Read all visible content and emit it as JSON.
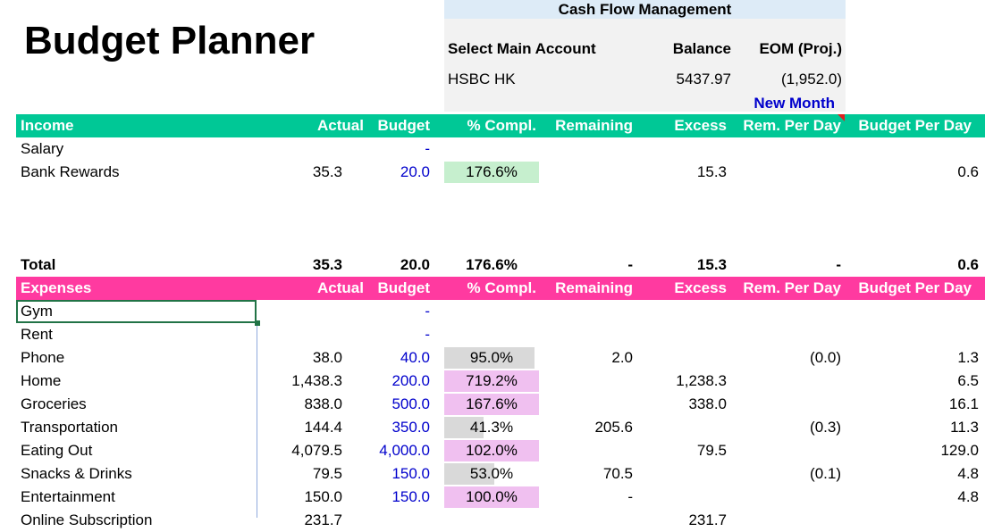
{
  "title": "Budget Planner",
  "cashflow": {
    "header": "Cash Flow Management",
    "select_label": "Select Main Account",
    "balance_label": "Balance",
    "eom_label": "EOM (Proj.)",
    "account": "HSBC HK",
    "balance": "5437.97",
    "eom": "(1,952.0)",
    "new_month": "New Month"
  },
  "columns": [
    "Actual",
    "Budget",
    "% Compl.",
    "Remaining",
    "Excess",
    "Rem. Per Day",
    "Budget Per Day"
  ],
  "income": {
    "label": "Income",
    "rows": [
      {
        "name": "Salary",
        "actual": "",
        "budget": "-",
        "pct": "",
        "remaining": "",
        "excess": "",
        "rem_day": "",
        "budget_day": ""
      },
      {
        "name": "Bank Rewards",
        "actual": "35.3",
        "budget": "20.0",
        "pct": "176.6%",
        "remaining": "",
        "excess": "15.3",
        "rem_day": "",
        "budget_day": "0.6"
      }
    ],
    "total": {
      "name": "Total",
      "actual": "35.3",
      "budget": "20.0",
      "pct": "176.6%",
      "remaining": "-",
      "excess": "15.3",
      "rem_day": "-",
      "budget_day": "0.6"
    }
  },
  "expenses": {
    "label": "Expenses",
    "rows": [
      {
        "name": "Gym",
        "actual": "",
        "budget": "-",
        "pct": "",
        "remaining": "",
        "excess": "",
        "rem_day": "",
        "budget_day": ""
      },
      {
        "name": "Rent",
        "actual": "",
        "budget": "-",
        "pct": "",
        "remaining": "",
        "excess": "",
        "rem_day": "",
        "budget_day": ""
      },
      {
        "name": "Phone",
        "actual": "38.0",
        "budget": "40.0",
        "pct": "95.0%",
        "remaining": "2.0",
        "excess": "",
        "rem_day": "(0.0)",
        "budget_day": "1.3"
      },
      {
        "name": "Home",
        "actual": "1,438.3",
        "budget": "200.0",
        "pct": "719.2%",
        "remaining": "",
        "excess": "1,238.3",
        "rem_day": "",
        "budget_day": "6.5"
      },
      {
        "name": "Groceries",
        "actual": "838.0",
        "budget": "500.0",
        "pct": "167.6%",
        "remaining": "",
        "excess": "338.0",
        "rem_day": "",
        "budget_day": "16.1"
      },
      {
        "name": "Transportation",
        "actual": "144.4",
        "budget": "350.0",
        "pct": "41.3%",
        "remaining": "205.6",
        "excess": "",
        "rem_day": "(0.3)",
        "budget_day": "11.3"
      },
      {
        "name": "Eating Out",
        "actual": "4,079.5",
        "budget": "4,000.0",
        "pct": "102.0%",
        "remaining": "",
        "excess": "79.5",
        "rem_day": "",
        "budget_day": "129.0"
      },
      {
        "name": "Snacks & Drinks",
        "actual": "79.5",
        "budget": "150.0",
        "pct": "53.0%",
        "remaining": "70.5",
        "excess": "",
        "rem_day": "(0.1)",
        "budget_day": "4.8"
      },
      {
        "name": "Entertainment",
        "actual": "150.0",
        "budget": "150.0",
        "pct": "100.0%",
        "remaining": "-",
        "excess": "",
        "rem_day": "",
        "budget_day": "4.8"
      },
      {
        "name": "Online Subscription",
        "actual": "231.7",
        "budget": "",
        "pct": "",
        "remaining": "",
        "excess": "231.7",
        "rem_day": "",
        "budget_day": ""
      }
    ]
  },
  "colors": {
    "income": "#00c896",
    "expenses": "#ff3aa0",
    "over": "#f0c0f0",
    "under": "#d9d9d9",
    "income_over": "#c6efce"
  }
}
